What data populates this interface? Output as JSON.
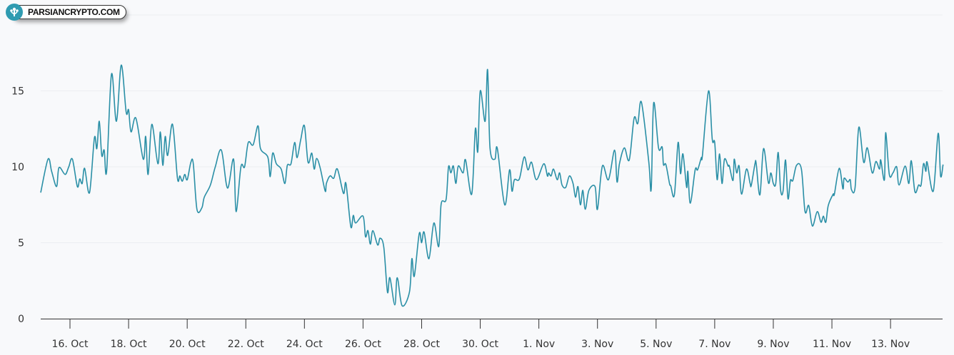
{
  "logo": {
    "text": "PARSIANCRYPTO.COM",
    "icon": "tree-icon",
    "color": "#2f9bb1"
  },
  "chart_data": {
    "type": "line",
    "title": "",
    "xlabel": "",
    "ylabel": "",
    "ylim": [
      0,
      20
    ],
    "y_ticks": [
      "0",
      "5",
      "10",
      "15",
      "20"
    ],
    "x_ticks": [
      "16. Oct",
      "18. Oct",
      "20. Oct",
      "22. Oct",
      "24. Oct",
      "26. Oct",
      "28. Oct",
      "30. Oct",
      "1. Nov",
      "3. Nov",
      "5. Nov",
      "7. Nov",
      "9. Nov",
      "11. Nov",
      "13. Nov"
    ],
    "grid": true,
    "line_color": "#2a8fa6",
    "series": [
      {
        "points": [
          [
            "Oct 15 00:00",
            8.3
          ],
          [
            "Oct 15 06:00",
            10.5
          ],
          [
            "Oct 15 09:00",
            9.7
          ],
          [
            "Oct 15 13:00",
            8.7
          ],
          [
            "Oct 15 15:00",
            9.95
          ],
          [
            "Oct 15 20:00",
            9.5
          ],
          [
            "Oct 15 23:00",
            10
          ],
          [
            "Oct 16 02:00",
            10.5
          ],
          [
            "Oct 16 06:00",
            8.7
          ],
          [
            "Oct 16 08:00",
            9.2
          ],
          [
            "Oct 16 10:00",
            8.9
          ],
          [
            "Oct 16 12:00",
            9.9
          ],
          [
            "Oct 16 16:00",
            8.3
          ],
          [
            "Oct 16 20:00",
            11.9
          ],
          [
            "Oct 16 22:00",
            11.2
          ],
          [
            "Oct 17 00:00",
            13
          ],
          [
            "Oct 17 02:00",
            10.75
          ],
          [
            "Oct 17 04:00",
            11.1
          ],
          [
            "Oct 17 06:00",
            9.7
          ],
          [
            "Oct 17 10:00",
            16.1
          ],
          [
            "Oct 17 14:00",
            13
          ],
          [
            "Oct 17 18:00",
            16.7
          ],
          [
            "Oct 17 22:00",
            13.6
          ],
          [
            "Oct 18 00:00",
            13.75
          ],
          [
            "Oct 18 02:00",
            12.3
          ],
          [
            "Oct 18 06:00",
            13.2
          ],
          [
            "Oct 18 12:00",
            10.5
          ],
          [
            "Oct 18 14:00",
            12
          ],
          [
            "Oct 18 16:00",
            9.5
          ],
          [
            "Oct 18 19:00",
            12.8
          ],
          [
            "Oct 19 00:00",
            10.2
          ],
          [
            "Oct 19 02:00",
            12.3
          ],
          [
            "Oct 19 04:00",
            10.1
          ],
          [
            "Oct 19 06:00",
            12
          ],
          [
            "Oct 19 08:00",
            10.75
          ],
          [
            "Oct 19 12:00",
            12.8
          ],
          [
            "Oct 19 16:00",
            9.25
          ],
          [
            "Oct 19 18:00",
            9.4
          ],
          [
            "Oct 19 20:00",
            9.05
          ],
          [
            "Oct 19 22:00",
            9.5
          ],
          [
            "Oct 20 00:00",
            9.15
          ],
          [
            "Oct 20 03:00",
            10.3
          ],
          [
            "Oct 20 05:00",
            10.2
          ],
          [
            "Oct 20 08:00",
            7.2
          ],
          [
            "Oct 20 12:00",
            7.3
          ],
          [
            "Oct 20 14:00",
            8
          ],
          [
            "Oct 20 19:00",
            8.8
          ],
          [
            "Oct 20 23:00",
            10
          ],
          [
            "Oct 21 04:00",
            11.1
          ],
          [
            "Oct 21 09:00",
            8.6
          ],
          [
            "Oct 21 14:00",
            10.5
          ],
          [
            "Oct 21 16:00",
            7.05
          ],
          [
            "Oct 21 20:00",
            10
          ],
          [
            "Oct 21 23:00",
            10
          ],
          [
            "Oct 22 02:00",
            11.6
          ],
          [
            "Oct 22 06:00",
            11.45
          ],
          [
            "Oct 22 10:00",
            12.7
          ],
          [
            "Oct 22 12:00",
            11.2
          ],
          [
            "Oct 22 18:00",
            10.65
          ],
          [
            "Oct 22 20:00",
            9.35
          ],
          [
            "Oct 22 22:00",
            10.9
          ],
          [
            "Oct 23 01:00",
            10.2
          ],
          [
            "Oct 23 05:00",
            9.85
          ],
          [
            "Oct 23 08:00",
            8.9
          ],
          [
            "Oct 23 10:00",
            10.1
          ],
          [
            "Oct 23 13:00",
            10.2
          ],
          [
            "Oct 23 16:00",
            11.6
          ],
          [
            "Oct 23 18:00",
            10.6
          ],
          [
            "Oct 23 21:00",
            11.8
          ],
          [
            "Oct 24 00:00",
            12.7
          ],
          [
            "Oct 24 03:00",
            10.3
          ],
          [
            "Oct 24 06:00",
            10.9
          ],
          [
            "Oct 24 08:00",
            9.85
          ],
          [
            "Oct 24 10:00",
            10.55
          ],
          [
            "Oct 24 13:00",
            9.9
          ],
          [
            "Oct 24 17:00",
            8.4
          ],
          [
            "Oct 24 18:00",
            8.9
          ],
          [
            "Oct 24 21:00",
            9.4
          ],
          [
            "Oct 25 00:00",
            9.25
          ],
          [
            "Oct 25 03:00",
            9.85
          ],
          [
            "Oct 25 08:00",
            8.25
          ],
          [
            "Oct 25 10:00",
            8.9
          ],
          [
            "Oct 25 14:00",
            6.05
          ],
          [
            "Oct 25 16:00",
            6.8
          ],
          [
            "Oct 25 18:00",
            6.3
          ],
          [
            "Oct 26 00:00",
            6.75
          ],
          [
            "Oct 26 02:00",
            5.4
          ],
          [
            "Oct 26 04:00",
            5.8
          ],
          [
            "Oct 26 06:00",
            4.9
          ],
          [
            "Oct 26 08:00",
            5.8
          ],
          [
            "Oct 26 12:00",
            4.85
          ],
          [
            "Oct 26 14:00",
            5.3
          ],
          [
            "Oct 26 17:00",
            4.7
          ],
          [
            "Oct 26 20:00",
            1.75
          ],
          [
            "Oct 26 22:00",
            2.7
          ],
          [
            "Oct 27 02:00",
            0.9
          ],
          [
            "Oct 27 04:00",
            2.7
          ],
          [
            "Oct 27 08:00",
            0.85
          ],
          [
            "Oct 27 14:00",
            1.75
          ],
          [
            "Oct 27 16:00",
            3.95
          ],
          [
            "Oct 27 18:00",
            2.8
          ],
          [
            "Oct 27 22:00",
            5.6
          ],
          [
            "Oct 28 00:00",
            5.0
          ],
          [
            "Oct 28 02:00",
            5.7
          ],
          [
            "Oct 28 06:00",
            3.95
          ],
          [
            "Oct 28 10:00",
            6.3
          ],
          [
            "Oct 28 14:00",
            4.75
          ],
          [
            "Oct 28 16:00",
            7.55
          ],
          [
            "Oct 28 20:00",
            7.85
          ],
          [
            "Oct 28 22:00",
            10
          ],
          [
            "Oct 29 00:00",
            9.6
          ],
          [
            "Oct 29 02:00",
            10.05
          ],
          [
            "Oct 29 04:00",
            8.9
          ],
          [
            "Oct 29 06:00",
            10.05
          ],
          [
            "Oct 29 10:00",
            9.6
          ],
          [
            "Oct 29 12:00",
            10.45
          ],
          [
            "Oct 29 17:00",
            8.2
          ],
          [
            "Oct 29 20:00",
            12.5
          ],
          [
            "Oct 29 22:00",
            11
          ],
          [
            "Oct 30 00:00",
            15.0
          ],
          [
            "Oct 30 04:00",
            13
          ],
          [
            "Oct 30 06:00",
            16.4
          ],
          [
            "Oct 30 08:00",
            11.25
          ],
          [
            "Oct 30 12:00",
            10.5
          ],
          [
            "Oct 30 14:00",
            11.2
          ],
          [
            "Oct 30 20:00",
            7.5
          ],
          [
            "Oct 31 00:00",
            9.8
          ],
          [
            "Oct 31 02:00",
            8.4
          ],
          [
            "Oct 31 04:00",
            9.15
          ],
          [
            "Oct 31 08:00",
            9.2
          ],
          [
            "Oct 31 12:00",
            10.65
          ],
          [
            "Oct 31 15:00",
            9.8
          ],
          [
            "Oct 31 18:00",
            10.3
          ],
          [
            "Oct 31 22:00",
            9.15
          ],
          [
            "Nov 1 04:00",
            10.2
          ],
          [
            "Nov 1 07:00",
            9.4
          ],
          [
            "Nov 1 08:00",
            9.6
          ],
          [
            "Nov 1 10:00",
            9.4
          ],
          [
            "Nov 1 12:00",
            9.85
          ],
          [
            "Nov 1 15:00",
            9.15
          ],
          [
            "Nov 1 17:00",
            9.6
          ],
          [
            "Nov 1 19:00",
            8.8
          ],
          [
            "Nov 1 22:00",
            8.65
          ],
          [
            "Nov 2 01:00",
            9.4
          ],
          [
            "Nov 2 04:00",
            8.9
          ],
          [
            "Nov 2 06:00",
            8.0
          ],
          [
            "Nov 2 08:00",
            8.7
          ],
          [
            "Nov 2 10:00",
            7.5
          ],
          [
            "Nov 2 12:00",
            8.45
          ],
          [
            "Nov 2 14:00",
            7.2
          ],
          [
            "Nov 2 17:00",
            8.45
          ],
          [
            "Nov 2 22:00",
            8.7
          ],
          [
            "Nov 3 00:00",
            7.2
          ],
          [
            "Nov 3 04:00",
            10.05
          ],
          [
            "Nov 3 09:00",
            9.15
          ],
          [
            "Nov 3 14:00",
            11.1
          ],
          [
            "Nov 3 16:00",
            9.0
          ],
          [
            "Nov 3 18:00",
            10.2
          ],
          [
            "Nov 3 22:00",
            11.25
          ],
          [
            "Nov 4 02:00",
            10.45
          ],
          [
            "Nov 4 06:00",
            13.2
          ],
          [
            "Nov 4 09:00",
            12.85
          ],
          [
            "Nov 4 12:00",
            14.25
          ],
          [
            "Nov 4 18:00",
            10.35
          ],
          [
            "Nov 4 20:00",
            8.55
          ],
          [
            "Nov 4 22:00",
            14.2
          ],
          [
            "Nov 5 02:00",
            11.25
          ],
          [
            "Nov 5 05:00",
            11.3
          ],
          [
            "Nov 5 06:00",
            10.15
          ],
          [
            "Nov 5 08:00",
            10.15
          ],
          [
            "Nov 5 11:00",
            8.9
          ],
          [
            "Nov 5 12:00",
            8.75
          ],
          [
            "Nov 5 15:00",
            8.15
          ],
          [
            "Nov 5 18:00",
            11.6
          ],
          [
            "Nov 5 20:00",
            9.55
          ],
          [
            "Nov 5 22:00",
            10.85
          ],
          [
            "Nov 6 01:00",
            8.65
          ],
          [
            "Nov 6 02:00",
            9.7
          ],
          [
            "Nov 6 04:00",
            7.6
          ],
          [
            "Nov 6 08:00",
            9.8
          ],
          [
            "Nov 6 10:00",
            9.8
          ],
          [
            "Nov 6 13:00",
            10.6
          ],
          [
            "Nov 6 14:00",
            10.8
          ],
          [
            "Nov 6 19:00",
            15.0
          ],
          [
            "Nov 6 22:00",
            11.8
          ],
          [
            "Nov 7 00:00",
            11.6
          ],
          [
            "Nov 7 02:00",
            9.15
          ],
          [
            "Nov 7 04:00",
            10.85
          ],
          [
            "Nov 7 06:00",
            8.9
          ],
          [
            "Nov 7 08:00",
            10.5
          ],
          [
            "Nov 7 11:00",
            10.05
          ],
          [
            "Nov 7 12:00",
            10.05
          ],
          [
            "Nov 7 15:00",
            9.1
          ],
          [
            "Nov 7 16:00",
            10.5
          ],
          [
            "Nov 7 18:00",
            9.6
          ],
          [
            "Nov 7 20:00",
            10.05
          ],
          [
            "Nov 7 22:00",
            8.2
          ],
          [
            "Nov 8 02:00",
            9.85
          ],
          [
            "Nov 8 05:00",
            8.9
          ],
          [
            "Nov 8 06:00",
            8.8
          ],
          [
            "Nov 8 09:00",
            10.2
          ],
          [
            "Nov 8 10:00",
            10.2
          ],
          [
            "Nov 8 13:00",
            8.15
          ],
          [
            "Nov 8 16:00",
            11.2
          ],
          [
            "Nov 8 20:00",
            8.95
          ],
          [
            "Nov 8 22:00",
            9.6
          ],
          [
            "Nov 9 00:00",
            8.9
          ],
          [
            "Nov 9 02:00",
            8.9
          ],
          [
            "Nov 9 04:00",
            10.95
          ],
          [
            "Nov 9 06:00",
            8.45
          ],
          [
            "Nov 9 08:00",
            8.4
          ],
          [
            "Nov 9 10:00",
            10.45
          ],
          [
            "Nov 9 12:00",
            7.9
          ],
          [
            "Nov 9 14:00",
            9.1
          ],
          [
            "Nov 9 16:00",
            9.1
          ],
          [
            "Nov 9 19:00",
            10.1
          ],
          [
            "Nov 9 23:00",
            9.85
          ],
          [
            "Nov 10 02:00",
            7.05
          ],
          [
            "Nov 10 05:00",
            7.45
          ],
          [
            "Nov 10 08:00",
            6.1
          ],
          [
            "Nov 10 12:00",
            7.05
          ],
          [
            "Nov 10 15:00",
            6.35
          ],
          [
            "Nov 10 17:00",
            6.75
          ],
          [
            "Nov 10 19:00",
            6.35
          ],
          [
            "Nov 10 21:00",
            7.45
          ],
          [
            "Nov 11 01:00",
            8.2
          ],
          [
            "Nov 11 02:00",
            8.2
          ],
          [
            "Nov 11 06:00",
            9.9
          ],
          [
            "Nov 11 09:00",
            8.55
          ],
          [
            "Nov 11 10:00",
            9.25
          ],
          [
            "Nov 11 13:00",
            9.0
          ],
          [
            "Nov 11 15:00",
            9.15
          ],
          [
            "Nov 11 16:00",
            8.5
          ],
          [
            "Nov 11 19:00",
            8.65
          ],
          [
            "Nov 11 22:00",
            12.6
          ],
          [
            "Nov 12 02:00",
            10.3
          ],
          [
            "Nov 12 05:00",
            11.25
          ],
          [
            "Nov 12 09:00",
            9.6
          ],
          [
            "Nov 12 12:00",
            10.35
          ],
          [
            "Nov 12 15:00",
            9.85
          ],
          [
            "Nov 12 16:00",
            10.45
          ],
          [
            "Nov 12 19:00",
            9.15
          ],
          [
            "Nov 12 20:00",
            12.25
          ],
          [
            "Nov 12 23:00",
            9.5
          ],
          [
            "Nov 13 02:00",
            9.6
          ],
          [
            "Nov 13 05:00",
            10.0
          ],
          [
            "Nov 13 07:00",
            8.8
          ],
          [
            "Nov 13 12:00",
            10.05
          ],
          [
            "Nov 13 15:00",
            8.9
          ],
          [
            "Nov 13 17:00",
            10.4
          ],
          [
            "Nov 13 20:00",
            8.35
          ],
          [
            "Nov 13 23:00",
            8.8
          ],
          [
            "Nov 14 01:00",
            8.8
          ],
          [
            "Nov 14 03:00",
            10.2
          ],
          [
            "Nov 14 05:00",
            9.7
          ],
          [
            "Nov 14 06:00",
            10.3
          ],
          [
            "Nov 14 11:00",
            8.4
          ],
          [
            "Nov 14 15:00",
            12.2
          ],
          [
            "Nov 14 17:00",
            9.4
          ],
          [
            "Nov 14 19:00",
            10.15
          ]
        ]
      }
    ]
  }
}
